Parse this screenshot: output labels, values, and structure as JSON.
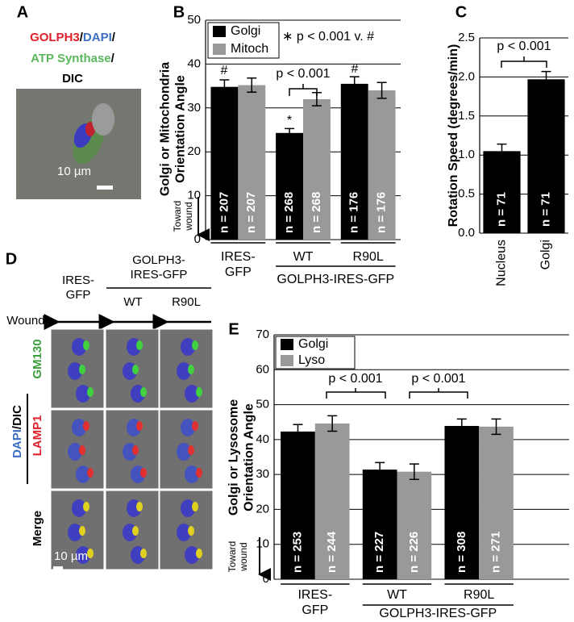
{
  "chart_data": [
    {
      "type": "bar",
      "panel": "B",
      "ylabel": "Golgi or Mitochondria\nOrientation Angle",
      "toward_label": "Toward\nwound",
      "categories": [
        "IRES-\nGFP",
        "WT",
        "R90L"
      ],
      "group_label": "GOLPH3-IRES-GFP",
      "ylim": [
        0,
        50
      ],
      "yticks": [
        0,
        10,
        20,
        30,
        40,
        50
      ],
      "grid": true,
      "legend": "upper left",
      "series": [
        {
          "name": "Golgi",
          "color": "#000000",
          "values": [
            34.8,
            24.3,
            35.5
          ],
          "errors": [
            1.6,
            1.0,
            1.6
          ],
          "n_labels": [
            "n = 207",
            "n = 268",
            "n = 176"
          ]
        },
        {
          "name": "Mitoch",
          "color": "#999999",
          "values": [
            35.2,
            32.0,
            34.0
          ],
          "errors": [
            1.6,
            1.5,
            1.8
          ],
          "n_labels": [
            "n = 207",
            "n = 268",
            "n = 176"
          ]
        }
      ],
      "note": "∗ p < 0.001 v. #",
      "annotations": [
        "#",
        "*",
        "#",
        "p < 0.001"
      ]
    },
    {
      "type": "bar",
      "panel": "C",
      "ylabel": "Rotation Speed (degrees/min)",
      "categories": [
        "Nucleus",
        "Golgi"
      ],
      "ylim": [
        0,
        2.5
      ],
      "yticks": [
        {
          "value": 0,
          "label": "0.0"
        },
        0.5,
        {
          "value": 1,
          "label": "1.0"
        },
        1.5,
        {
          "value": 2,
          "label": "2.0"
        },
        2.5
      ],
      "grid": true,
      "series": [
        {
          "color": "#000000",
          "values": [
            1.05,
            1.97
          ],
          "errors": [
            0.09,
            0.1
          ],
          "n_labels": [
            "n = 71",
            "n = 71"
          ]
        }
      ],
      "annotations": [
        "p < 0.001"
      ]
    },
    {
      "type": "bar",
      "panel": "E",
      "ylabel": "Golgi or Lysosome\nOrientation Angle",
      "toward_label": "Toward\nwound",
      "categories": [
        "IRES-\nGFP",
        "WT",
        "R90L"
      ],
      "group_label": "GOLPH3-IRES-GFP",
      "ylim": [
        0,
        70
      ],
      "yticks": [
        0,
        10,
        20,
        30,
        40,
        50,
        60,
        70
      ],
      "grid": true,
      "legend": "upper left",
      "series": [
        {
          "name": "Golgi",
          "color": "#000000",
          "values": [
            42.3,
            31.4,
            43.9
          ],
          "errors": [
            2.0,
            2.0,
            2.0
          ],
          "n_labels": [
            "n = 253",
            "n = 227",
            "n = 308"
          ]
        },
        {
          "name": "Lyso",
          "color": "#999999",
          "values": [
            44.6,
            30.8,
            43.7
          ],
          "errors": [
            2.2,
            2.2,
            2.2
          ],
          "n_labels": [
            "n = 244",
            "n = 226",
            "n = 271"
          ]
        }
      ],
      "annotations": [
        "p < 0.001",
        "p < 0.001"
      ]
    }
  ],
  "figure": {
    "panel_a": {
      "letter": "A",
      "stains": [
        "GOLPH3",
        "/",
        "DAPI",
        "/",
        "ATP Synthase",
        "/",
        "DIC"
      ],
      "scale": "10 µm"
    },
    "panel_d": {
      "letter": "D",
      "headers": [
        "IRES-\nGFP",
        "GOLPH3-\nIRES-GFP",
        "WT",
        "R90L"
      ],
      "wound": "Wound:",
      "stains": [
        "DAPI",
        "/DIC",
        "GM130",
        "LAMP1",
        "Merge"
      ],
      "scale": "10 µm"
    }
  }
}
